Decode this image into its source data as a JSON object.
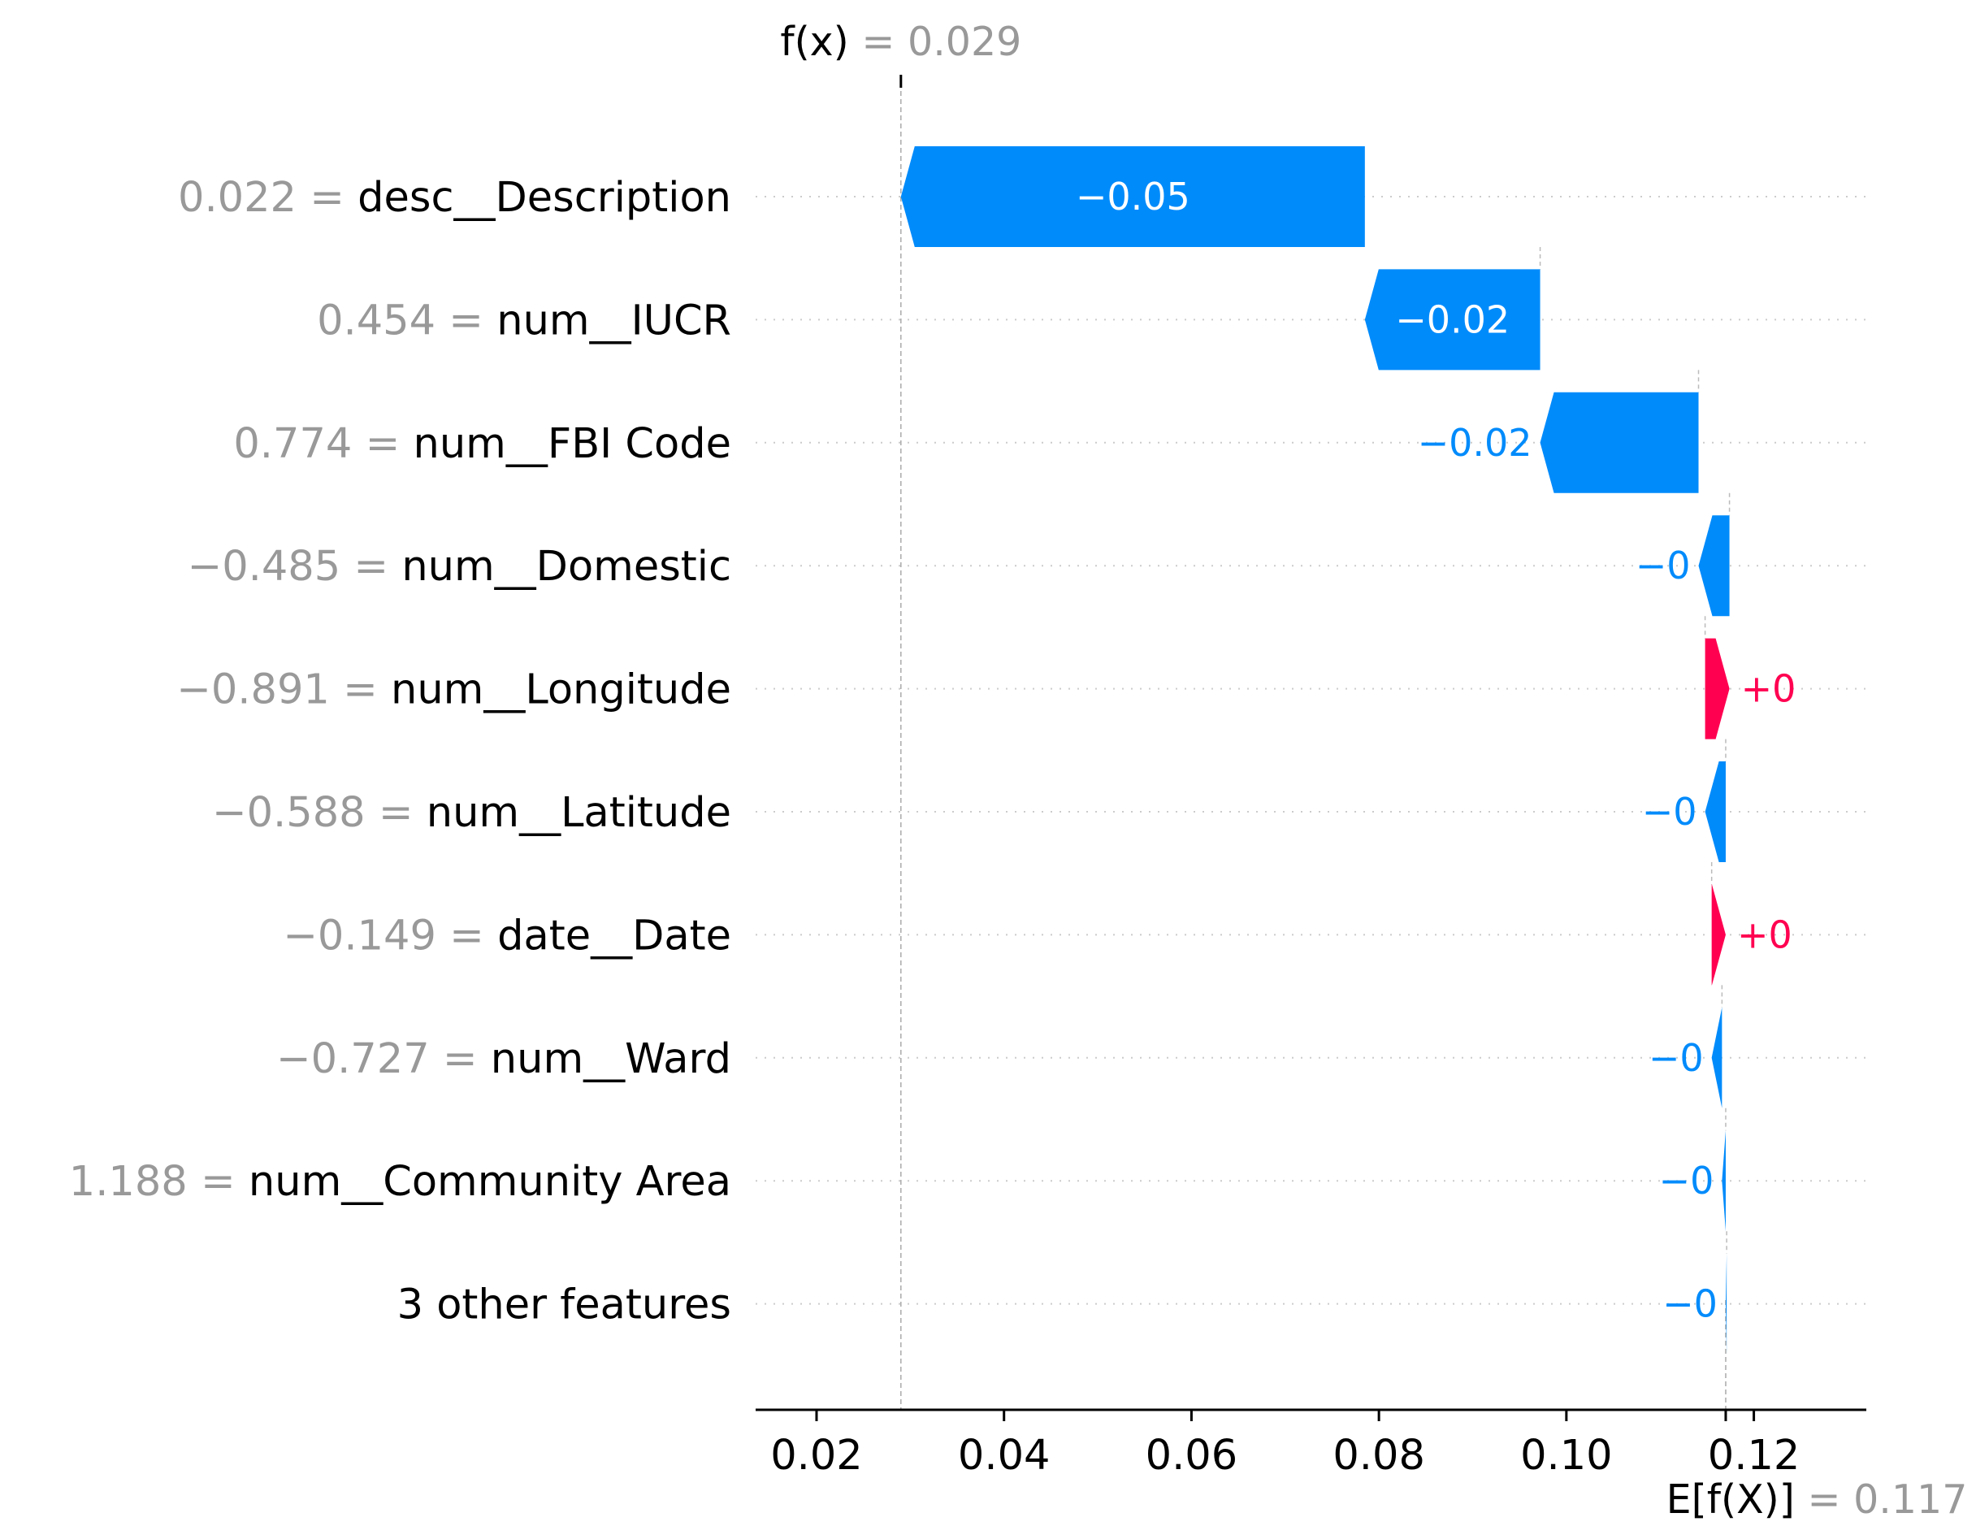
{
  "chart_data": {
    "type": "waterfall",
    "fx_annotation": {
      "name": "f(x)",
      "value": "0.029"
    },
    "ex_annotation": {
      "name": "E[f(X)]",
      "value": "0.117"
    },
    "fx": 0.029,
    "base_value": 0.117,
    "xlim": [
      0.0135,
      0.132
    ],
    "xticks": [
      0.02,
      0.04,
      0.06,
      0.08,
      0.1,
      0.12
    ],
    "xtick_labels": [
      "0.02",
      "0.04",
      "0.06",
      "0.08",
      "0.10",
      "0.12"
    ],
    "grid": "horizontal dotted guide per feature row",
    "features": [
      {
        "value_text": "0.022",
        "name": "desc__Description",
        "start": 0.0785,
        "end": 0.029,
        "label": "−0.05",
        "sign": "neg"
      },
      {
        "value_text": "0.454",
        "name": "num__IUCR",
        "start": 0.0972,
        "end": 0.0785,
        "label": "−0.02",
        "sign": "neg"
      },
      {
        "value_text": "0.774",
        "name": "num__FBI Code",
        "start": 0.1141,
        "end": 0.0972,
        "label": "−0.02",
        "sign": "neg"
      },
      {
        "value_text": "−0.485",
        "name": "num__Domestic",
        "start": 0.1174,
        "end": 0.1141,
        "label": "−0",
        "sign": "neg"
      },
      {
        "value_text": "−0.891",
        "name": "num__Longitude",
        "start": 0.1148,
        "end": 0.1174,
        "label": "+0",
        "sign": "pos"
      },
      {
        "value_text": "−0.588",
        "name": "num__Latitude",
        "start": 0.117,
        "end": 0.1148,
        "label": "−0",
        "sign": "neg"
      },
      {
        "value_text": "−0.149",
        "name": "date__Date",
        "start": 0.1155,
        "end": 0.117,
        "label": "+0",
        "sign": "pos"
      },
      {
        "value_text": "−0.727",
        "name": "num__Ward",
        "start": 0.1166,
        "end": 0.1155,
        "label": "−0",
        "sign": "neg"
      },
      {
        "value_text": "1.188",
        "name": "num__Community Area",
        "start": 0.117,
        "end": 0.1166,
        "label": "−0",
        "sign": "neg"
      },
      {
        "value_text": "",
        "name": "3 other features",
        "start": 0.1171,
        "end": 0.117,
        "label": "−0",
        "sign": "neg"
      }
    ],
    "colors": {
      "negative": "#008bfb",
      "positive": "#ff0051",
      "guide": "#cccccc",
      "axis": "#000000",
      "value_text": "#999999"
    }
  }
}
